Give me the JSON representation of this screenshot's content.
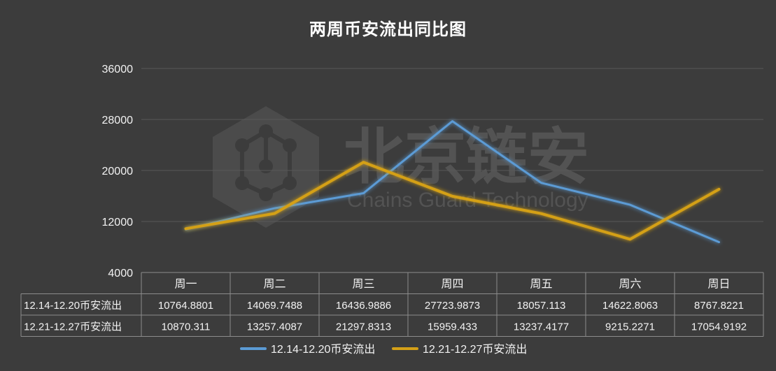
{
  "chart_data": {
    "type": "line",
    "title": "两周币安流出同比图",
    "categories": [
      "周一",
      "周二",
      "周三",
      "周四",
      "周五",
      "周六",
      "周日"
    ],
    "series": [
      {
        "name": "12.14-12.20币安流出",
        "values": [
          "10764.8801",
          "14069.7488",
          "16436.9886",
          "27723.9873",
          "18057.113",
          "14622.8063",
          "8767.8221"
        ],
        "color": "#5b9bd5"
      },
      {
        "name": "12.21-12.27币安流出",
        "values": [
          "10870.311",
          "13257.4087",
          "21297.8313",
          "15959.433",
          "13237.4177",
          "9215.2271",
          "17054.9192"
        ],
        "color": "#d4a017"
      }
    ],
    "yticks": [
      "4000",
      "12000",
      "20000",
      "28000",
      "36000"
    ],
    "ylim": [
      4000,
      36000
    ],
    "grid": true,
    "data_table": true,
    "legend": "bottom"
  },
  "watermark": {
    "cn": "北京链安",
    "en": "Chains Guard Technology"
  }
}
